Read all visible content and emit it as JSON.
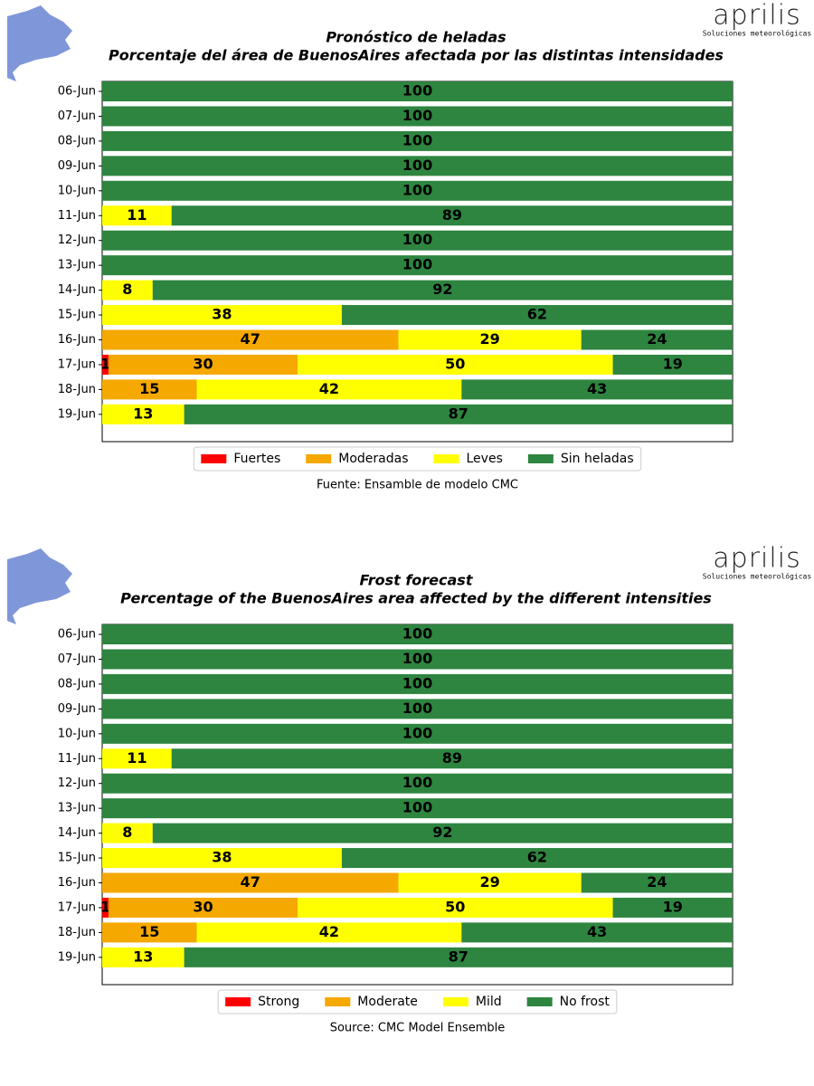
{
  "logo": {
    "name": "aprilis",
    "tagline": "Soluciones meteorológicas"
  },
  "chart_data": [
    {
      "type": "stacked-barh",
      "title": "Pronóstico de heladas",
      "subtitle": "Porcentaje del área de BuenosAires afectada por las distintas intensidades",
      "categories": [
        "06-Jun",
        "07-Jun",
        "08-Jun",
        "09-Jun",
        "10-Jun",
        "11-Jun",
        "12-Jun",
        "13-Jun",
        "14-Jun",
        "15-Jun",
        "16-Jun",
        "17-Jun",
        "18-Jun",
        "19-Jun"
      ],
      "series": [
        {
          "name": "Fuertes",
          "color": "#ff0000",
          "label_color": "#ffffff",
          "values": [
            0,
            0,
            0,
            0,
            0,
            0,
            0,
            0,
            0,
            0,
            0,
            1,
            0,
            0
          ]
        },
        {
          "name": "Moderadas",
          "color": "#f5a800",
          "label_color": "#ffffff",
          "values": [
            0,
            0,
            0,
            0,
            0,
            0,
            0,
            0,
            0,
            0,
            47,
            30,
            15,
            0
          ]
        },
        {
          "name": "Leves",
          "color": "#ffff00",
          "label_color": "#a9a9a9",
          "values": [
            0,
            0,
            0,
            0,
            0,
            11,
            0,
            0,
            8,
            38,
            29,
            50,
            42,
            13
          ]
        },
        {
          "name": "Sin heladas",
          "color": "#2e8540",
          "label_color": "#ffffff",
          "values": [
            100,
            100,
            100,
            100,
            100,
            89,
            100,
            100,
            92,
            62,
            24,
            19,
            43,
            87
          ]
        }
      ],
      "xlim": [
        0,
        100
      ],
      "source": "Fuente: Ensamble de modelo CMC"
    },
    {
      "type": "stacked-barh",
      "title": "Frost forecast",
      "subtitle": "Percentage of the BuenosAires area affected by the different intensities",
      "categories": [
        "06-Jun",
        "07-Jun",
        "08-Jun",
        "09-Jun",
        "10-Jun",
        "11-Jun",
        "12-Jun",
        "13-Jun",
        "14-Jun",
        "15-Jun",
        "16-Jun",
        "17-Jun",
        "18-Jun",
        "19-Jun"
      ],
      "series": [
        {
          "name": "Strong",
          "color": "#ff0000",
          "label_color": "#ffffff",
          "values": [
            0,
            0,
            0,
            0,
            0,
            0,
            0,
            0,
            0,
            0,
            0,
            1,
            0,
            0
          ]
        },
        {
          "name": "Moderate",
          "color": "#f5a800",
          "label_color": "#ffffff",
          "values": [
            0,
            0,
            0,
            0,
            0,
            0,
            0,
            0,
            0,
            0,
            47,
            30,
            15,
            0
          ]
        },
        {
          "name": "Mild",
          "color": "#ffff00",
          "label_color": "#a9a9a9",
          "values": [
            0,
            0,
            0,
            0,
            0,
            11,
            0,
            0,
            8,
            38,
            29,
            50,
            42,
            13
          ]
        },
        {
          "name": "No  frost",
          "color": "#2e8540",
          "label_color": "#ffffff",
          "values": [
            100,
            100,
            100,
            100,
            100,
            89,
            100,
            100,
            92,
            62,
            24,
            19,
            43,
            87
          ]
        }
      ],
      "xlim": [
        0,
        100
      ],
      "source": "Source: CMC Model Ensemble"
    }
  ]
}
